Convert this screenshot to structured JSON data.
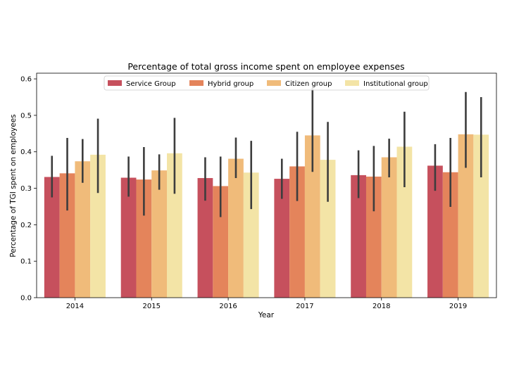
{
  "chart_data": {
    "type": "bar",
    "title": "Percentage of total gross income spent on employee expenses",
    "xlabel": "Year",
    "ylabel": "Percentage of TGI spent on employees",
    "categories": [
      "2014",
      "2015",
      "2016",
      "2017",
      "2018",
      "2019"
    ],
    "ylim": [
      0.0,
      0.6156
    ],
    "yticks": [
      "0.0",
      "0.1",
      "0.2",
      "0.3",
      "0.4",
      "0.5",
      "0.6"
    ],
    "legend_position": "top-center",
    "grid": false,
    "series": [
      {
        "name": "Service Group",
        "color": "#c6505d",
        "values": [
          0.331,
          0.329,
          0.328,
          0.326,
          0.336,
          0.362
        ],
        "err_low": [
          0.275,
          0.277,
          0.266,
          0.271,
          0.273,
          0.293
        ],
        "err_high": [
          0.389,
          0.387,
          0.385,
          0.381,
          0.404,
          0.421
        ]
      },
      {
        "name": "Hybrid group",
        "color": "#e4845b",
        "values": [
          0.341,
          0.324,
          0.306,
          0.36,
          0.332,
          0.344
        ],
        "err_low": [
          0.239,
          0.225,
          0.221,
          0.265,
          0.237,
          0.249
        ],
        "err_high": [
          0.438,
          0.413,
          0.387,
          0.455,
          0.416,
          0.438
        ]
      },
      {
        "name": "Citizen group",
        "color": "#f0bb7a",
        "values": [
          0.374,
          0.349,
          0.381,
          0.445,
          0.385,
          0.448
        ],
        "err_low": [
          0.315,
          0.296,
          0.328,
          0.345,
          0.33,
          0.356
        ],
        "err_high": [
          0.435,
          0.393,
          0.439,
          0.575,
          0.436,
          0.564
        ]
      },
      {
        "name": "Institutional group",
        "color": "#f3e4a6",
        "values": [
          0.392,
          0.396,
          0.343,
          0.378,
          0.414,
          0.447
        ],
        "err_low": [
          0.287,
          0.285,
          0.243,
          0.263,
          0.303,
          0.33
        ],
        "err_high": [
          0.491,
          0.493,
          0.43,
          0.482,
          0.51,
          0.55
        ]
      }
    ]
  }
}
